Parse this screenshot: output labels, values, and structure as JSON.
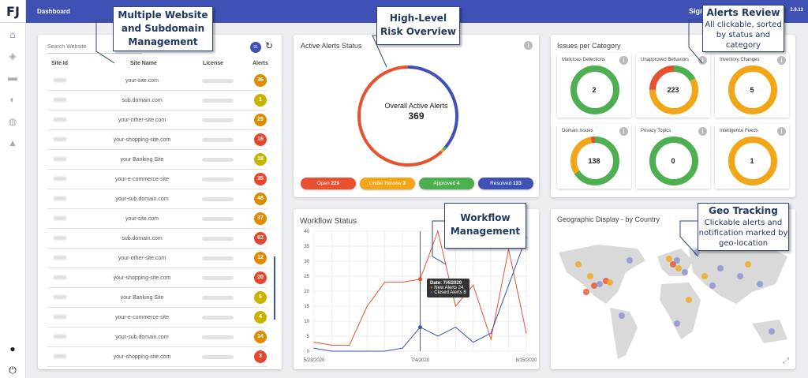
{
  "header": {
    "title": "Dashboard",
    "user_label": "Sign",
    "version": "2.8.13"
  },
  "logo": "FJ",
  "sidebar": {
    "items": [
      "home-icon",
      "layers-icon",
      "briefcase-icon",
      "shield-icon",
      "globe-icon",
      "bell-icon"
    ],
    "bottom": [
      "user-icon",
      "power-icon"
    ]
  },
  "sites": {
    "search_placeholder": "Search Website",
    "count": "91",
    "columns": [
      "Site Id",
      "Site Name",
      "License",
      "Alerts"
    ],
    "rows": [
      {
        "name": "your-site.com",
        "alerts": "36",
        "color": "#e08a00"
      },
      {
        "name": "sub.domain.com",
        "alerts": "1",
        "color": "#c9b300"
      },
      {
        "name": "your-other-site.com",
        "alerts": "25",
        "color": "#e08a00"
      },
      {
        "name": "your-shopping-site.com",
        "alerts": "16",
        "color": "#e8452c"
      },
      {
        "name": "your Banking Site",
        "alerts": "18",
        "color": "#c9b300"
      },
      {
        "name": "your-e-commerce-site",
        "alerts": "35",
        "color": "#e8452c"
      },
      {
        "name": "your-sub.domain.com",
        "alerts": "48",
        "color": "#e08a00"
      },
      {
        "name": "your-site.com",
        "alerts": "37",
        "color": "#e08a00"
      },
      {
        "name": "sub.domain.com",
        "alerts": "62",
        "color": "#e8452c"
      },
      {
        "name": "your-other-site.com",
        "alerts": "12",
        "color": "#e08a00"
      },
      {
        "name": "your-shopping-site.com",
        "alerts": "20",
        "color": "#e8452c"
      },
      {
        "name": "your Banking Site",
        "alerts": "5",
        "color": "#c9b300"
      },
      {
        "name": "your-e-commerce-site",
        "alerts": "4",
        "color": "#c9b300"
      },
      {
        "name": "your-sub.domain.com",
        "alerts": "14",
        "color": "#e08a00"
      },
      {
        "name": "your-shopping-site.com",
        "alerts": "3",
        "color": "#e8452c"
      }
    ]
  },
  "active": {
    "title": "Active Alerts Status",
    "center_label": "Overall Active Alerts",
    "total": "369",
    "statuses": [
      {
        "label": "Open",
        "value": 229,
        "color": "#e8502f"
      },
      {
        "label": "Under Review",
        "value": 3,
        "color": "#f2a516"
      },
      {
        "label": "Approved",
        "value": 4,
        "color": "#4caf50"
      },
      {
        "label": "Resolved",
        "value": 133,
        "color": "#3f51b5"
      }
    ]
  },
  "categories": {
    "title": "Issues per Category",
    "items": [
      {
        "label": "Malicious Detections",
        "total": "2",
        "segments": [
          {
            "v": 1,
            "c": "#4caf50"
          }
        ]
      },
      {
        "label": "Unapproved Behaviors",
        "total": "223",
        "segments": [
          {
            "v": 0.17,
            "c": "#4caf50"
          },
          {
            "v": 0.58,
            "c": "#f2a516"
          },
          {
            "v": 0.25,
            "c": "#e8502f"
          }
        ]
      },
      {
        "label": "Inventory Changes",
        "total": "5",
        "segments": [
          {
            "v": 1,
            "c": "#f2a516"
          }
        ]
      },
      {
        "label": "Domain Issues",
        "total": "138",
        "segments": [
          {
            "v": 0.66,
            "c": "#4caf50"
          },
          {
            "v": 0.31,
            "c": "#f2a516"
          },
          {
            "v": 0.03,
            "c": "#e8502f"
          }
        ]
      },
      {
        "label": "Privacy Topics",
        "total": "0",
        "segments": [
          {
            "v": 1,
            "c": "#4caf50"
          }
        ]
      },
      {
        "label": "Intelligence Feeds",
        "total": "1",
        "segments": [
          {
            "v": 1,
            "c": "#f2a516"
          }
        ]
      }
    ]
  },
  "chart_data": {
    "type": "line",
    "title": "Workflow Status",
    "x": [
      "5/23/2020",
      "5/30/2020",
      "6/6/2020",
      "6/13/2020",
      "6/20/2020",
      "6/27/2020",
      "7/4/2020",
      "7/11/2020",
      "7/18/2020",
      "7/25/2020",
      "8/1/2020",
      "8/8/2020",
      "8/15/2020"
    ],
    "xticks": [
      "5/23/2020",
      "7/4/2020",
      "8/15/2020"
    ],
    "yticks": [
      0,
      5,
      10,
      15,
      20,
      25,
      30,
      35,
      40
    ],
    "ylim": [
      0,
      40
    ],
    "grid": true,
    "series": [
      {
        "name": "New Alerts",
        "color": "#e8502f",
        "values": [
          3,
          2,
          2,
          15,
          23,
          23,
          24,
          40,
          15,
          22,
          4,
          34,
          6
        ]
      },
      {
        "name": "Closed Alerts",
        "color": "#3f51b5",
        "values": [
          1,
          0,
          0,
          0,
          0,
          1,
          8,
          5,
          8,
          3,
          6,
          22,
          38
        ]
      }
    ],
    "tooltip": {
      "date_label": "Date: 7/4/2020",
      "rows": [
        {
          "label": "New Alerts",
          "value": "24"
        },
        {
          "label": "Closed Alerts",
          "value": "8"
        }
      ]
    }
  },
  "geo": {
    "title": "Geographic Display - by Country"
  },
  "callouts": [
    {
      "title": "Multiple Website and Subdomain Management",
      "text": ""
    },
    {
      "title": "High-Level Risk Overview",
      "text": ""
    },
    {
      "title": "Alerts Review",
      "text": "All clickable, sorted by status and category"
    },
    {
      "title": "Workflow Management",
      "text": ""
    },
    {
      "title": "Geo Tracking",
      "text": "Clickable alerts and notification marked by geo-location"
    }
  ]
}
